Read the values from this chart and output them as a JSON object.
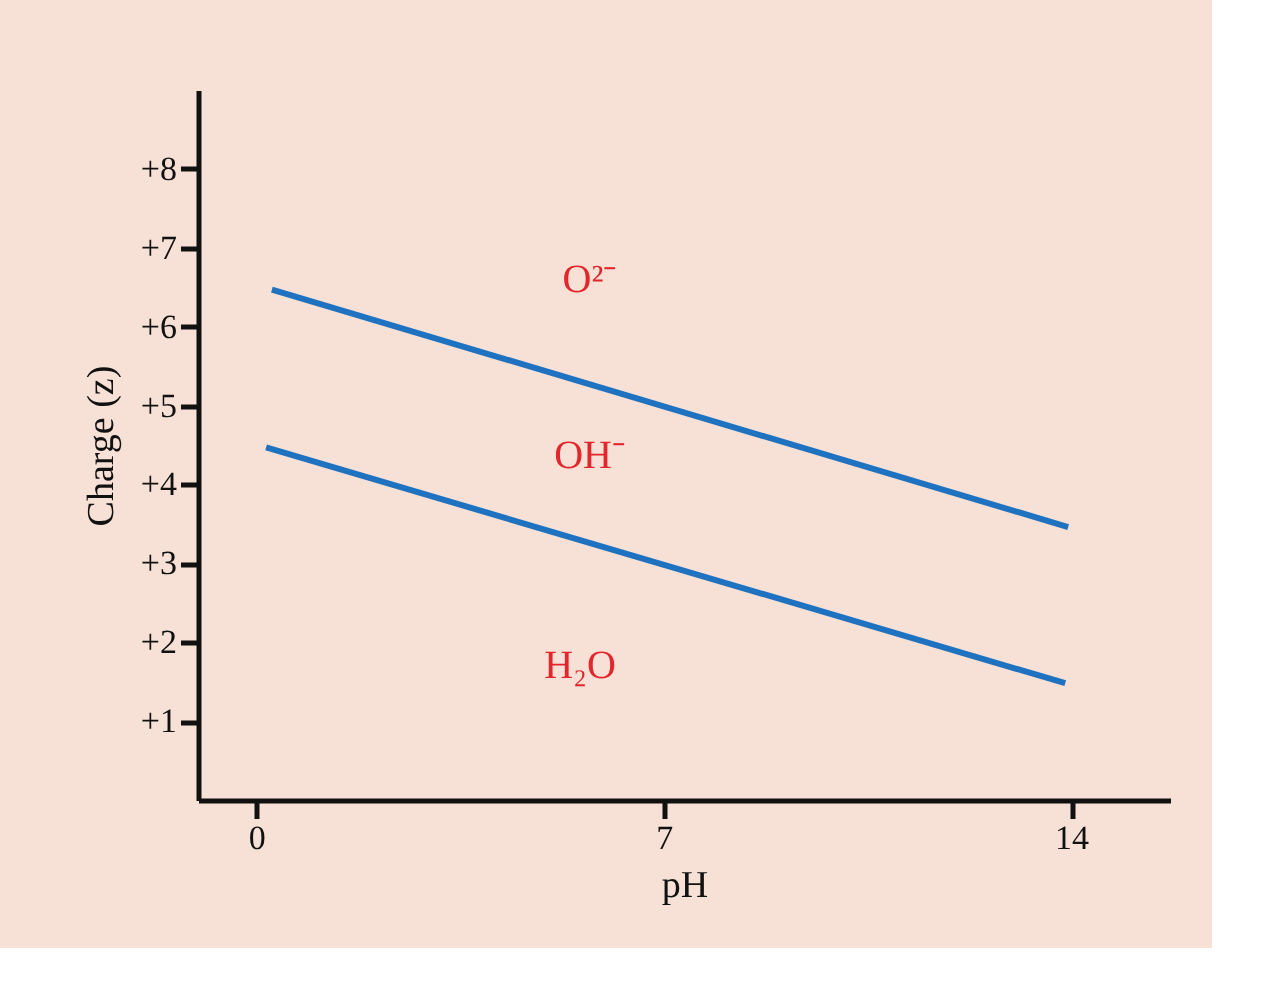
{
  "chart_data": {
    "type": "line",
    "xlabel": "pH",
    "ylabel": "Charge (z)",
    "series": [
      {
        "color": "#1f72c0",
        "x": [
          0.27,
          13.95
        ],
        "values": [
          6.47,
          3.46
        ]
      },
      {
        "color": "#1f72c0",
        "x": [
          0.17,
          13.9
        ],
        "values": [
          4.47,
          1.48
        ]
      }
    ],
    "xlim": [
      -1,
      15.7
    ],
    "xticks": [
      0,
      7,
      14
    ],
    "ylim": [
      0,
      9
    ],
    "yticks": [
      {
        "value": 1,
        "label": "+1"
      },
      {
        "value": 2,
        "label": "+2"
      },
      {
        "value": 3,
        "label": "+3"
      },
      {
        "value": 4,
        "label": "+4"
      },
      {
        "value": 5,
        "label": "+5"
      },
      {
        "value": 6,
        "label": "+6"
      },
      {
        "value": 7,
        "label": "+7"
      },
      {
        "value": 8,
        "label": "+8"
      }
    ],
    "annotations": [
      "O²⁻",
      "OH⁻",
      "H₂O"
    ],
    "grid": false,
    "marker": "none",
    "line_style": "solid"
  }
}
